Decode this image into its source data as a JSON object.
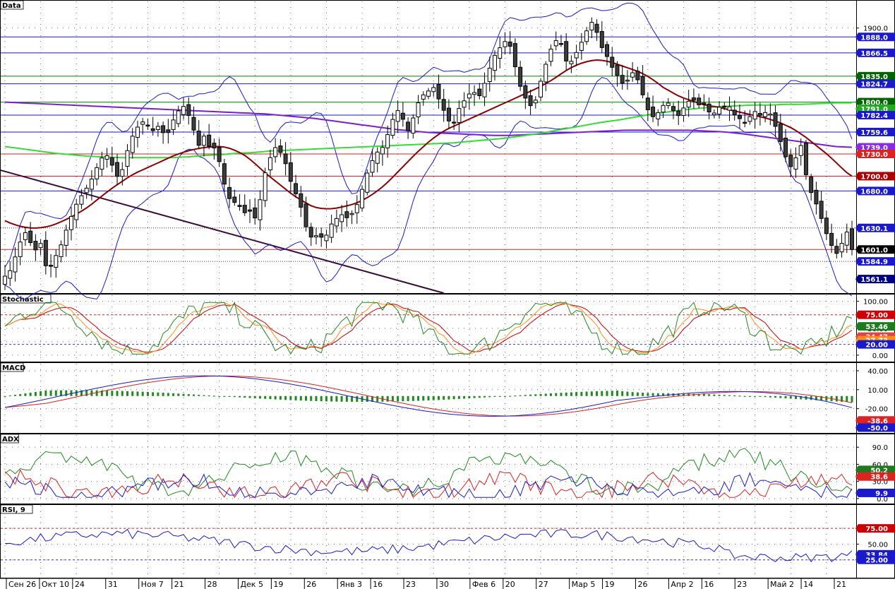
{
  "chart_data": {
    "type": "line",
    "panes": {
      "price": {
        "title": "Data",
        "ylim": [
          1545,
          1935
        ],
        "ticks": [
          "1900.0"
        ],
        "tick_values": [
          1900
        ],
        "hlines": [
          {
            "value": 1888.0,
            "color": "#1a1acc"
          },
          {
            "value": 1866.5,
            "color": "#1a1acc"
          },
          {
            "value": 1835.0,
            "color": "#008000"
          },
          {
            "value": 1824.7,
            "color": "#1a1acc"
          },
          {
            "value": 1800.0,
            "color": "#008000"
          },
          {
            "value": 1782.4,
            "color": "#1a1acc"
          },
          {
            "value": 1759.6,
            "color": "#1a1acc"
          },
          {
            "value": 1730.0,
            "color": "#dd2222"
          },
          {
            "value": 1700.0,
            "color": "#dd2222"
          },
          {
            "value": 1680.0,
            "color": "#1a1acc"
          },
          {
            "value": 1630.1,
            "color": "#333333",
            "dotted": true
          },
          {
            "value": 1601.0,
            "color": "#dd2222"
          },
          {
            "value": 1584.9,
            "color": "#333333",
            "dotted": true
          }
        ],
        "badges": [
          {
            "label": "1888.0",
            "value": 1888.0,
            "bg": "#1a1acc"
          },
          {
            "label": "1866.5",
            "value": 1866.5,
            "bg": "#1a1acc"
          },
          {
            "label": "1835.0",
            "value": 1835.0,
            "bg": "#006400"
          },
          {
            "label": "1824.7",
            "value": 1824.7,
            "bg": "#1a1acc"
          },
          {
            "label": "1800.0",
            "value": 1800.0,
            "bg": "#006400"
          },
          {
            "label": "1791.0",
            "value": 1791.0,
            "bg": "#22aa22"
          },
          {
            "label": "1782.4",
            "value": 1782.4,
            "bg": "#1a1acc"
          },
          {
            "label": "1759.6",
            "value": 1759.6,
            "bg": "#1a1acc"
          },
          {
            "label": "1739.0",
            "value": 1739.0,
            "bg": "#8a2be2"
          },
          {
            "label": "1730.0",
            "value": 1730.0,
            "bg": "#dd2222"
          },
          {
            "label": "1700.0",
            "value": 1700.0,
            "bg": "#aa0000"
          },
          {
            "label": "1680.0",
            "value": 1680.0,
            "bg": "#1a1acc"
          },
          {
            "label": "1630.1",
            "value": 1630.1,
            "bg": "#1a1acc"
          },
          {
            "label": "1601.0",
            "value": 1601.0,
            "bg": "#000000"
          },
          {
            "label": "1584.9",
            "value": 1584.9,
            "bg": "#1a1acc"
          },
          {
            "label": "1561.1",
            "value": 1561.1,
            "bg": "#000080"
          }
        ],
        "close": [
          1565,
          1572,
          1590,
          1610,
          1625,
          1612,
          1598,
          1615,
          1580,
          1575,
          1590,
          1602,
          1622,
          1640,
          1658,
          1670,
          1680,
          1690,
          1705,
          1720,
          1730,
          1725,
          1705,
          1695,
          1720,
          1745,
          1760,
          1770,
          1775,
          1765,
          1760,
          1770,
          1755,
          1760,
          1780,
          1790,
          1795,
          1780,
          1760,
          1740,
          1755,
          1740,
          1738,
          1720,
          1690,
          1670,
          1665,
          1660,
          1650,
          1655,
          1640,
          1660,
          1700,
          1720,
          1740,
          1735,
          1725,
          1700,
          1680,
          1670,
          1640,
          1620,
          1615,
          1625,
          1610,
          1630,
          1640,
          1645,
          1650,
          1640,
          1655,
          1665,
          1690,
          1710,
          1725,
          1735,
          1740,
          1760,
          1780,
          1790,
          1775,
          1760,
          1780,
          1800,
          1810,
          1815,
          1820,
          1805,
          1790,
          1775,
          1770,
          1790,
          1800,
          1810,
          1815,
          1805,
          1820,
          1840,
          1860,
          1870,
          1880,
          1885,
          1860,
          1830,
          1810,
          1800,
          1790,
          1815,
          1840,
          1860,
          1880,
          1885,
          1875,
          1845,
          1860,
          1870,
          1885,
          1900,
          1910,
          1890,
          1870,
          1860,
          1845,
          1835,
          1825,
          1830,
          1840,
          1830,
          1810,
          1790,
          1780,
          1785,
          1795,
          1800,
          1790,
          1780,
          1790,
          1800,
          1805,
          1795,
          1800,
          1790,
          1780,
          1795,
          1790,
          1800,
          1785,
          1780,
          1775,
          1770,
          1790,
          1785,
          1780,
          1790,
          1780,
          1760,
          1740,
          1720,
          1710,
          1730,
          1745,
          1690,
          1675,
          1660,
          1640,
          1620,
          1605,
          1595,
          1610,
          1625,
          1601
        ],
        "ma_red": [
          1640,
          1636,
          1633,
          1631,
          1630,
          1630,
          1631,
          1633,
          1636,
          1640,
          1644,
          1649,
          1654,
          1660,
          1667,
          1674,
          1681,
          1687,
          1693,
          1699,
          1704,
          1708,
          1712,
          1716,
          1720,
          1724,
          1728,
          1731,
          1734,
          1736,
          1738,
          1739,
          1740,
          1740,
          1739,
          1736,
          1732,
          1727,
          1720,
          1712,
          1704,
          1697,
          1690,
          1683,
          1676,
          1670,
          1665,
          1660,
          1657,
          1656,
          1656,
          1657,
          1659,
          1661,
          1664,
          1668,
          1673,
          1679,
          1686,
          1694,
          1703,
          1712,
          1721,
          1730,
          1738,
          1746,
          1753,
          1759,
          1764,
          1768,
          1772,
          1776,
          1780,
          1784,
          1788,
          1792,
          1796,
          1800,
          1804,
          1808,
          1812,
          1816,
          1820,
          1825,
          1830,
          1836,
          1842,
          1847,
          1851,
          1854,
          1856,
          1857,
          1856,
          1854,
          1851,
          1848,
          1845,
          1842,
          1838,
          1833,
          1827,
          1820,
          1815,
          1810,
          1806,
          1803,
          1800,
          1797,
          1795,
          1794,
          1792,
          1790,
          1788,
          1786,
          1784,
          1782,
          1780,
          1778,
          1775,
          1772,
          1768,
          1764,
          1758,
          1752,
          1745,
          1738,
          1731,
          1723,
          1715,
          1706,
          1700
        ],
        "ma_green": [
          1740,
          1737,
          1734,
          1731,
          1729,
          1727,
          1726,
          1725,
          1725,
          1725,
          1725,
          1726,
          1728,
          1729,
          1731,
          1732,
          1734,
          1735,
          1736,
          1737,
          1738,
          1739,
          1740,
          1741,
          1742,
          1743,
          1744,
          1745,
          1747,
          1749,
          1751,
          1754,
          1757,
          1761,
          1765,
          1769,
          1773,
          1776,
          1780,
          1784,
          1787,
          1790,
          1792,
          1794,
          1795,
          1796,
          1796,
          1797,
          1797,
          1798,
          1799,
          1799
        ],
        "ma_purple": [
          1800,
          1799,
          1798,
          1797,
          1796,
          1795,
          1794,
          1793,
          1792,
          1791,
          1790,
          1789,
          1788,
          1787,
          1786,
          1785,
          1784,
          1782,
          1780,
          1778,
          1775,
          1772,
          1769,
          1766,
          1763,
          1761,
          1759,
          1758,
          1757,
          1756,
          1755,
          1755,
          1756,
          1757,
          1758,
          1759,
          1760,
          1761,
          1762,
          1762,
          1762,
          1762,
          1762,
          1761,
          1760,
          1758,
          1755,
          1752,
          1749,
          1746,
          1743,
          1740,
          1739
        ]
      },
      "stochastic": {
        "title": "Stochastic",
        "ylim": [
          -8,
          110
        ],
        "ticks": [
          "100.00",
          "75.00",
          "50.00",
          "25.00",
          "0.00"
        ],
        "tick_values": [
          100,
          75,
          50,
          25,
          0
        ],
        "levels": [
          {
            "value": 75,
            "color": "#cc2222"
          },
          {
            "value": 20,
            "color": "#3333cc"
          }
        ],
        "badges": [
          {
            "label": "75.00",
            "value": 75,
            "bg": "#cc0000"
          },
          {
            "label": "53.46",
            "value": 53.46,
            "bg": "#1f7a1f"
          },
          {
            "label": "34.47",
            "value": 34.47,
            "bg": "#dd4444"
          },
          {
            "label": "27.73",
            "value": 27.73,
            "bg": "#ff8c1a"
          },
          {
            "label": "20.00",
            "value": 20,
            "bg": "#1a1acc"
          }
        ]
      },
      "macd": {
        "title": "MACD",
        "ylim": [
          -55,
          50
        ],
        "ticks": [
          "40.00",
          "10.00",
          "-20.00"
        ],
        "tick_values": [
          40,
          10,
          -20
        ],
        "badges": [
          {
            "label": "-38.6",
            "value": -38.6,
            "bg": "#dd2222"
          },
          {
            "label": "-50.0",
            "value": -50.0,
            "bg": "#1a1acc"
          }
        ]
      },
      "adx": {
        "title": "ADX",
        "ylim": [
          -5,
          110
        ],
        "ticks": [
          "90.0",
          "60.0",
          "30.0",
          "0.0"
        ],
        "tick_values": [
          90,
          60,
          30,
          0
        ],
        "badges": [
          {
            "label": "50.2",
            "value": 50.2,
            "bg": "#1f7a1f"
          },
          {
            "label": "38.6",
            "value": 38.6,
            "bg": "#dd2222"
          },
          {
            "label": "9.9",
            "value": 9.9,
            "bg": "#1a1acc"
          }
        ]
      },
      "rsi": {
        "title": "RSI, 9",
        "ylim": [
          0,
          110
        ],
        "ticks": [
          "75.00",
          "50.00",
          "25.00"
        ],
        "tick_values": [
          75,
          50,
          25
        ],
        "badges": [
          {
            "label": "75.00",
            "value": 75,
            "bg": "#cc0000"
          },
          {
            "label": "33.84",
            "value": 33.84,
            "bg": "#1a1acc"
          },
          {
            "label": "25.00",
            "value": 25,
            "bg": "#1a1acc"
          }
        ]
      }
    },
    "x_labels": [
      "Сен 26",
      "Окт 10",
      "24",
      "31",
      "Ноя 7",
      "21",
      "28",
      "Дек 5",
      "19",
      "26",
      "Янв 3",
      "16",
      "23",
      "30",
      "Фев 6",
      "20",
      "27",
      "Мар 5",
      "19",
      "26",
      "Апр 2",
      "16",
      "23",
      "Май 2",
      "14",
      "21"
    ]
  }
}
